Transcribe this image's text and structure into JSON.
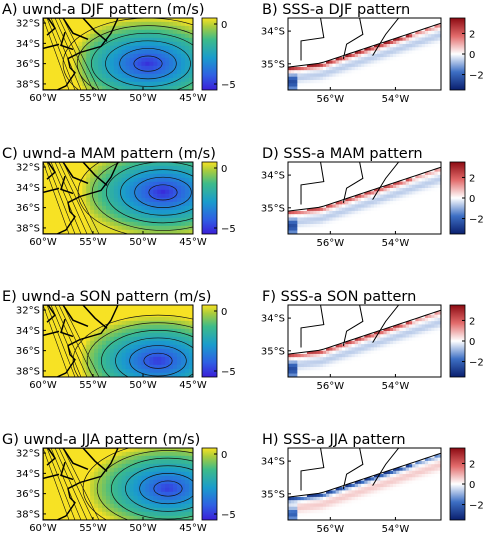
{
  "figure": {
    "left_range": {
      "lon": [
        -60,
        -45
      ],
      "lat": [
        -38.6,
        -31.5
      ]
    },
    "right_range": {
      "lon": [
        -57.3,
        -52.6
      ],
      "lat": [
        -35.8,
        -33.6
      ]
    },
    "left_colorbar": {
      "min": -5.5,
      "max": 0.5,
      "ticks": [
        "0",
        "−5"
      ],
      "tick_values": [
        0,
        -5
      ],
      "colormap": "viridis"
    },
    "right_colorbar": {
      "min": -3.5,
      "max": 3.5,
      "ticks": [
        "2",
        "0",
        "−2"
      ],
      "tick_values": [
        2,
        0,
        -2
      ],
      "colormap": "blue-white-red"
    },
    "left_ticks": {
      "x": [
        {
          "label": "60°W",
          "value": -60
        },
        {
          "label": "55°W",
          "value": -55
        },
        {
          "label": "50°W",
          "value": -50
        },
        {
          "label": "45°W",
          "value": -45
        }
      ],
      "y": [
        {
          "label": "32°S",
          "value": -32
        },
        {
          "label": "34°S",
          "value": -34
        },
        {
          "label": "36°S",
          "value": -36
        },
        {
          "label": "38°S",
          "value": -38
        }
      ]
    },
    "right_ticks": {
      "x": [
        {
          "label": "56°W",
          "value": -56
        },
        {
          "label": "54°W",
          "value": -54
        }
      ],
      "y": [
        {
          "label": "34°S",
          "value": -34
        },
        {
          "label": "35°S",
          "value": -35
        }
      ]
    }
  },
  "chart_data": [
    {
      "panel": "A",
      "title": "A) uwnd-a DJF pattern (m/s)",
      "type": "heatmap",
      "variable": "uwnd-a",
      "season": "DJF",
      "units": "m/s",
      "min_center": [
        -49.5,
        -36.0
      ],
      "min_value": -5.2
    },
    {
      "panel": "B",
      "title": "B) SSS-a DJF pattern",
      "type": "heatmap",
      "variable": "SSS-a",
      "season": "DJF",
      "plume_strength": 3.2,
      "plume_sign": "positive"
    },
    {
      "panel": "C",
      "title": "C) uwnd-a MAM pattern (m/s)",
      "type": "heatmap",
      "variable": "uwnd-a",
      "season": "MAM",
      "units": "m/s",
      "min_center": [
        -48.0,
        -34.5
      ],
      "min_value": -5.3
    },
    {
      "panel": "D",
      "title": "D) SSS-a MAM pattern",
      "type": "heatmap",
      "variable": "SSS-a",
      "season": "MAM",
      "plume_strength": 2.4,
      "plume_sign": "positive"
    },
    {
      "panel": "E",
      "title": "E) uwnd-a SON pattern (m/s)",
      "type": "heatmap",
      "variable": "uwnd-a",
      "season": "SON",
      "units": "m/s",
      "min_center": [
        -48.5,
        -37.0
      ],
      "min_value": -5.1
    },
    {
      "panel": "F",
      "title": "F) SSS-a SON pattern",
      "type": "heatmap",
      "variable": "SSS-a",
      "season": "SON",
      "plume_strength": 2.6,
      "plume_sign": "positive"
    },
    {
      "panel": "G",
      "title": "G) uwnd-a JJA pattern (m/s)",
      "type": "heatmap",
      "variable": "uwnd-a",
      "season": "JJA",
      "units": "m/s",
      "min_center": [
        -47.5,
        -35.5
      ],
      "min_value": -5.0
    },
    {
      "panel": "H",
      "title": "H) SSS-a JJA pattern",
      "type": "heatmap",
      "variable": "SSS-a",
      "season": "JJA",
      "plume_strength": 3.0,
      "plume_sign": "negative"
    }
  ]
}
